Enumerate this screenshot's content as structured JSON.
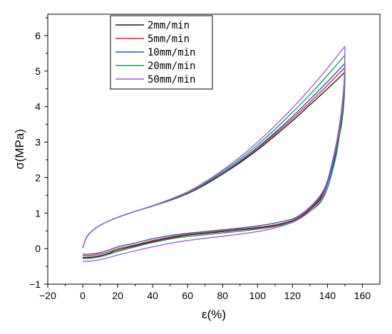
{
  "chart_data": {
    "type": "line",
    "title": "",
    "xlabel": "ε(%)",
    "ylabel": "σ(MPa)",
    "xlim": [
      -20,
      170
    ],
    "ylim": [
      -1,
      6.6
    ],
    "x_ticks": [
      -20,
      0,
      20,
      40,
      60,
      80,
      100,
      120,
      140,
      160
    ],
    "y_ticks": [
      -1,
      0,
      1,
      2,
      3,
      4,
      5,
      6
    ],
    "grid": false,
    "legend_position": "top-left",
    "series": [
      {
        "name": "2mm/min",
        "color": "#1a1a1a",
        "loading": [
          [
            0,
            0.02
          ],
          [
            2,
            0.3
          ],
          [
            5,
            0.48
          ],
          [
            10,
            0.66
          ],
          [
            20,
            0.88
          ],
          [
            30,
            1.05
          ],
          [
            40,
            1.2
          ],
          [
            50,
            1.36
          ],
          [
            60,
            1.55
          ],
          [
            70,
            1.8
          ],
          [
            80,
            2.1
          ],
          [
            90,
            2.42
          ],
          [
            100,
            2.78
          ],
          [
            110,
            3.18
          ],
          [
            120,
            3.6
          ],
          [
            130,
            4.05
          ],
          [
            140,
            4.5
          ],
          [
            150,
            4.97
          ]
        ],
        "unloading": [
          [
            150,
            4.97
          ],
          [
            149.5,
            4.2
          ],
          [
            148,
            3.5
          ],
          [
            146,
            3.0
          ],
          [
            144,
            2.5
          ],
          [
            140,
            1.8
          ],
          [
            136,
            1.4
          ],
          [
            130,
            1.1
          ],
          [
            125,
            0.9
          ],
          [
            120,
            0.78
          ],
          [
            110,
            0.65
          ],
          [
            100,
            0.58
          ],
          [
            90,
            0.53
          ],
          [
            80,
            0.48
          ],
          [
            70,
            0.43
          ],
          [
            60,
            0.38
          ],
          [
            50,
            0.3
          ],
          [
            40,
            0.2
          ],
          [
            30,
            0.08
          ],
          [
            20,
            -0.04
          ],
          [
            15,
            -0.13
          ],
          [
            10,
            -0.2
          ],
          [
            5,
            -0.24
          ],
          [
            0,
            -0.25
          ]
        ]
      },
      {
        "name": "5mm/min",
        "color": "#e6242a",
        "loading": [
          [
            0,
            0.02
          ],
          [
            2,
            0.3
          ],
          [
            5,
            0.48
          ],
          [
            10,
            0.66
          ],
          [
            20,
            0.88
          ],
          [
            30,
            1.05
          ],
          [
            40,
            1.2
          ],
          [
            50,
            1.37
          ],
          [
            60,
            1.56
          ],
          [
            70,
            1.82
          ],
          [
            80,
            2.12
          ],
          [
            90,
            2.45
          ],
          [
            100,
            2.82
          ],
          [
            110,
            3.23
          ],
          [
            120,
            3.66
          ],
          [
            130,
            4.12
          ],
          [
            140,
            4.6
          ],
          [
            150,
            5.1
          ]
        ],
        "unloading": [
          [
            150,
            5.1
          ],
          [
            149.5,
            4.3
          ],
          [
            148,
            3.6
          ],
          [
            146,
            3.1
          ],
          [
            144,
            2.6
          ],
          [
            140,
            1.85
          ],
          [
            136,
            1.45
          ],
          [
            130,
            1.13
          ],
          [
            125,
            0.93
          ],
          [
            120,
            0.8
          ],
          [
            110,
            0.67
          ],
          [
            100,
            0.6
          ],
          [
            90,
            0.55
          ],
          [
            80,
            0.5
          ],
          [
            70,
            0.45
          ],
          [
            60,
            0.4
          ],
          [
            50,
            0.33
          ],
          [
            40,
            0.23
          ],
          [
            30,
            0.11
          ],
          [
            20,
            0.0
          ],
          [
            15,
            -0.09
          ],
          [
            10,
            -0.15
          ],
          [
            5,
            -0.19
          ],
          [
            0,
            -0.2
          ]
        ]
      },
      {
        "name": "10mm/min",
        "color": "#1f5fd0",
        "loading": [
          [
            0,
            0.02
          ],
          [
            2,
            0.3
          ],
          [
            5,
            0.48
          ],
          [
            10,
            0.66
          ],
          [
            20,
            0.88
          ],
          [
            30,
            1.05
          ],
          [
            40,
            1.2
          ],
          [
            50,
            1.37
          ],
          [
            60,
            1.57
          ],
          [
            70,
            1.83
          ],
          [
            80,
            2.13
          ],
          [
            90,
            2.47
          ],
          [
            100,
            2.85
          ],
          [
            110,
            3.27
          ],
          [
            120,
            3.72
          ],
          [
            130,
            4.2
          ],
          [
            140,
            4.7
          ],
          [
            150,
            5.22
          ]
        ],
        "unloading": [
          [
            150,
            5.22
          ],
          [
            149.5,
            4.4
          ],
          [
            148,
            3.7
          ],
          [
            146,
            3.2
          ],
          [
            144,
            2.7
          ],
          [
            140,
            1.9
          ],
          [
            136,
            1.5
          ],
          [
            130,
            1.17
          ],
          [
            125,
            0.97
          ],
          [
            120,
            0.84
          ],
          [
            110,
            0.72
          ],
          [
            100,
            0.64
          ],
          [
            90,
            0.58
          ],
          [
            80,
            0.53
          ],
          [
            70,
            0.48
          ],
          [
            60,
            0.43
          ],
          [
            50,
            0.37
          ],
          [
            40,
            0.28
          ],
          [
            30,
            0.16
          ],
          [
            20,
            0.05
          ],
          [
            15,
            -0.04
          ],
          [
            10,
            -0.11
          ],
          [
            5,
            -0.15
          ],
          [
            0,
            -0.16
          ]
        ]
      },
      {
        "name": "20mm/min",
        "color": "#1e9e5a",
        "loading": [
          [
            0,
            0.02
          ],
          [
            2,
            0.3
          ],
          [
            5,
            0.48
          ],
          [
            10,
            0.66
          ],
          [
            20,
            0.88
          ],
          [
            30,
            1.05
          ],
          [
            40,
            1.2
          ],
          [
            50,
            1.38
          ],
          [
            60,
            1.58
          ],
          [
            70,
            1.85
          ],
          [
            80,
            2.17
          ],
          [
            90,
            2.52
          ],
          [
            100,
            2.92
          ],
          [
            110,
            3.36
          ],
          [
            120,
            3.84
          ],
          [
            130,
            4.34
          ],
          [
            140,
            4.88
          ],
          [
            150,
            5.45
          ]
        ],
        "unloading": [
          [
            150,
            5.45
          ],
          [
            149.5,
            4.5
          ],
          [
            148,
            3.6
          ],
          [
            146,
            2.9
          ],
          [
            144,
            2.4
          ],
          [
            140,
            1.7
          ],
          [
            136,
            1.3
          ],
          [
            130,
            1.05
          ],
          [
            125,
            0.88
          ],
          [
            120,
            0.76
          ],
          [
            110,
            0.62
          ],
          [
            100,
            0.55
          ],
          [
            90,
            0.49
          ],
          [
            80,
            0.44
          ],
          [
            70,
            0.39
          ],
          [
            60,
            0.34
          ],
          [
            50,
            0.27
          ],
          [
            40,
            0.17
          ],
          [
            30,
            0.05
          ],
          [
            20,
            -0.08
          ],
          [
            15,
            -0.16
          ],
          [
            10,
            -0.23
          ],
          [
            5,
            -0.27
          ],
          [
            0,
            -0.28
          ]
        ]
      },
      {
        "name": "50mm/min",
        "color": "#a35ee0",
        "loading": [
          [
            0,
            0.02
          ],
          [
            2,
            0.3
          ],
          [
            5,
            0.48
          ],
          [
            10,
            0.66
          ],
          [
            20,
            0.88
          ],
          [
            30,
            1.05
          ],
          [
            40,
            1.21
          ],
          [
            50,
            1.39
          ],
          [
            60,
            1.6
          ],
          [
            70,
            1.88
          ],
          [
            80,
            2.21
          ],
          [
            90,
            2.58
          ],
          [
            100,
            3.0
          ],
          [
            110,
            3.46
          ],
          [
            120,
            3.96
          ],
          [
            130,
            4.5
          ],
          [
            140,
            5.08
          ],
          [
            150,
            5.7
          ]
        ],
        "unloading": [
          [
            150,
            5.7
          ],
          [
            149.5,
            4.7
          ],
          [
            148,
            3.9
          ],
          [
            146,
            3.2
          ],
          [
            144,
            2.6
          ],
          [
            140,
            1.8
          ],
          [
            136,
            1.35
          ],
          [
            130,
            1.05
          ],
          [
            125,
            0.87
          ],
          [
            120,
            0.74
          ],
          [
            110,
            0.58
          ],
          [
            100,
            0.48
          ],
          [
            90,
            0.41
          ],
          [
            80,
            0.35
          ],
          [
            70,
            0.29
          ],
          [
            60,
            0.23
          ],
          [
            50,
            0.15
          ],
          [
            40,
            0.05
          ],
          [
            30,
            -0.06
          ],
          [
            20,
            -0.18
          ],
          [
            15,
            -0.25
          ],
          [
            10,
            -0.31
          ],
          [
            5,
            -0.35
          ],
          [
            0,
            -0.36
          ]
        ]
      }
    ]
  }
}
